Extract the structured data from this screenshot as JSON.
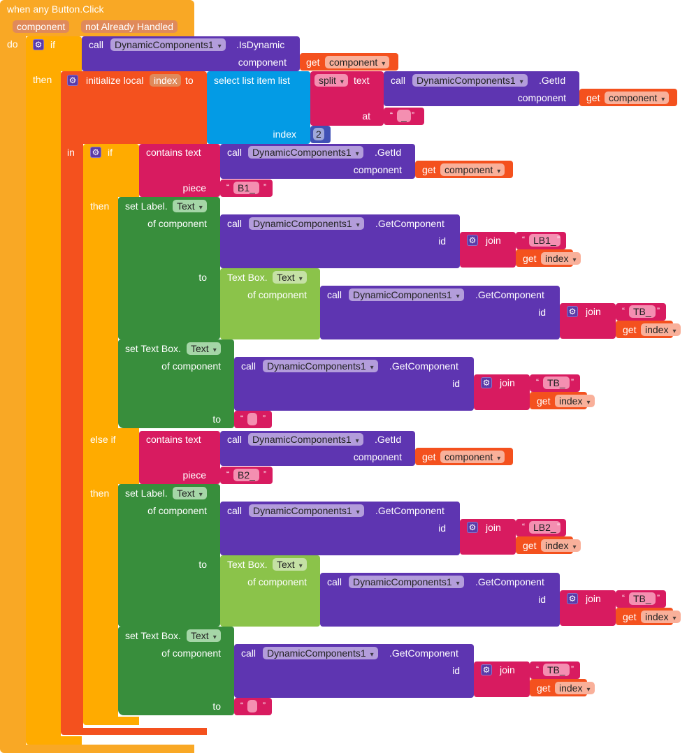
{
  "event": {
    "title": "when any Button.Click",
    "params": [
      "component",
      "not Already Handled"
    ],
    "do_label": "do"
  },
  "outer_if": {
    "if_label": "if",
    "then_label": "then",
    "condition": {
      "call_label": "call",
      "component": "DynamicComponents1",
      "method": ".IsDynamic",
      "arg_label": "component",
      "arg_get": "get",
      "arg_var": "component"
    }
  },
  "init_local": {
    "label": "initialize local",
    "var_name": "index",
    "to_label": "to",
    "in_label": "in",
    "select": {
      "label": "select list item  list",
      "index_label": "index",
      "index_value": "2"
    },
    "split": {
      "op": "split",
      "text_label": "text",
      "at_label": "at",
      "at_value": "_",
      "call_label": "call",
      "component": "DynamicComponents1",
      "method": ".GetId",
      "arg_label": "component",
      "arg_get": "get",
      "arg_var": "component"
    }
  },
  "inner_if": {
    "if_label": "if",
    "else_if_label": "else if",
    "then_label": "then",
    "branches": [
      {
        "contains_label": "contains  text",
        "piece_label": "piece",
        "piece_value": "B1_",
        "call_label": "call",
        "component": "DynamicComponents1",
        "method": ".GetId",
        "arg_label": "component",
        "arg_get": "get",
        "arg_var": "component",
        "set_label": {
          "set_prefix": "set Label.",
          "property": "Text",
          "of_component_label": "of component",
          "to_label": "to",
          "call_label": "call",
          "component": "DynamicComponents1",
          "method": ".GetComponent",
          "id_label": "id",
          "join_label": "join",
          "join_text": "LB1_",
          "join_get": "get",
          "join_var": "index",
          "value": {
            "getter_prefix": "Text Box.",
            "property": "Text",
            "of_component_label": "of component",
            "call_label": "call",
            "component": "DynamicComponents1",
            "method": ".GetComponent",
            "id_label": "id",
            "join_label": "join",
            "join_text": "TB_",
            "join_get": "get",
            "join_var": "index"
          }
        },
        "set_textbox": {
          "set_prefix": "set Text Box.",
          "property": "Text",
          "of_component_label": "of component",
          "to_label": "to",
          "call_label": "call",
          "component": "DynamicComponents1",
          "method": ".GetComponent",
          "id_label": "id",
          "join_label": "join",
          "join_text": "TB_",
          "join_get": "get",
          "join_var": "index",
          "to_value": ""
        }
      },
      {
        "contains_label": "contains  text",
        "piece_label": "piece",
        "piece_value": "B2_",
        "call_label": "call",
        "component": "DynamicComponents1",
        "method": ".GetId",
        "arg_label": "component",
        "arg_get": "get",
        "arg_var": "component",
        "set_label": {
          "set_prefix": "set Label.",
          "property": "Text",
          "of_component_label": "of component",
          "to_label": "to",
          "call_label": "call",
          "component": "DynamicComponents1",
          "method": ".GetComponent",
          "id_label": "id",
          "join_label": "join",
          "join_text": "LB2_",
          "join_get": "get",
          "join_var": "index",
          "value": {
            "getter_prefix": "Text Box.",
            "property": "Text",
            "of_component_label": "of component",
            "call_label": "call",
            "component": "DynamicComponents1",
            "method": ".GetComponent",
            "id_label": "id",
            "join_label": "join",
            "join_text": "TB_",
            "join_get": "get",
            "join_var": "index"
          }
        },
        "set_textbox": {
          "set_prefix": "set Text Box.",
          "property": "Text",
          "of_component_label": "of component",
          "to_label": "to",
          "call_label": "call",
          "component": "DynamicComponents1",
          "method": ".GetComponent",
          "id_label": "id",
          "join_label": "join",
          "join_text": "TB_",
          "join_get": "get",
          "join_var": "index",
          "to_value": ""
        }
      }
    ]
  },
  "colors": {
    "event": "#f9a825",
    "control": "#ffab00",
    "variable": "#f4511e",
    "component_call": "#5e35b1",
    "list": "#039be5",
    "text": "#d81b60",
    "math": "#3f51b5",
    "setter": "#388e3c",
    "getter": "#8bc34a"
  }
}
